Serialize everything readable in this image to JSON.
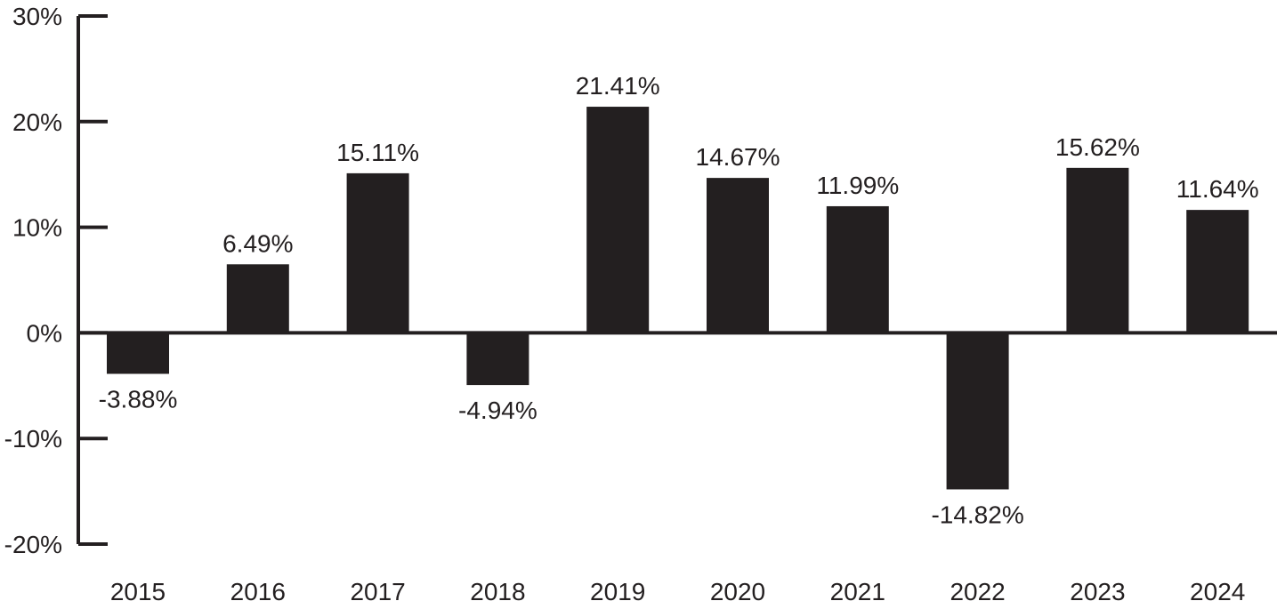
{
  "chart_data": {
    "type": "bar",
    "categories": [
      "2015",
      "2016",
      "2017",
      "2018",
      "2019",
      "2020",
      "2021",
      "2022",
      "2023",
      "2024"
    ],
    "values": [
      -3.88,
      6.49,
      15.11,
      -4.94,
      21.41,
      14.67,
      11.99,
      -14.82,
      15.62,
      11.64
    ],
    "data_labels": [
      "-3.88%",
      "6.49%",
      "15.11%",
      "-4.94%",
      "21.41%",
      "14.67%",
      "11.99%",
      "-14.82%",
      "15.62%",
      "11.64%"
    ],
    "y_ticks": [
      30,
      20,
      10,
      0,
      -10,
      -20
    ],
    "y_tick_labels": [
      "30%",
      "20%",
      "10%",
      "0%",
      "-10%",
      "-20%"
    ],
    "ylim": [
      -20,
      30
    ],
    "title": "",
    "xlabel": "",
    "ylabel": "",
    "grid": false,
    "bar_color": "#231f20",
    "axis_color": "#231f20"
  }
}
